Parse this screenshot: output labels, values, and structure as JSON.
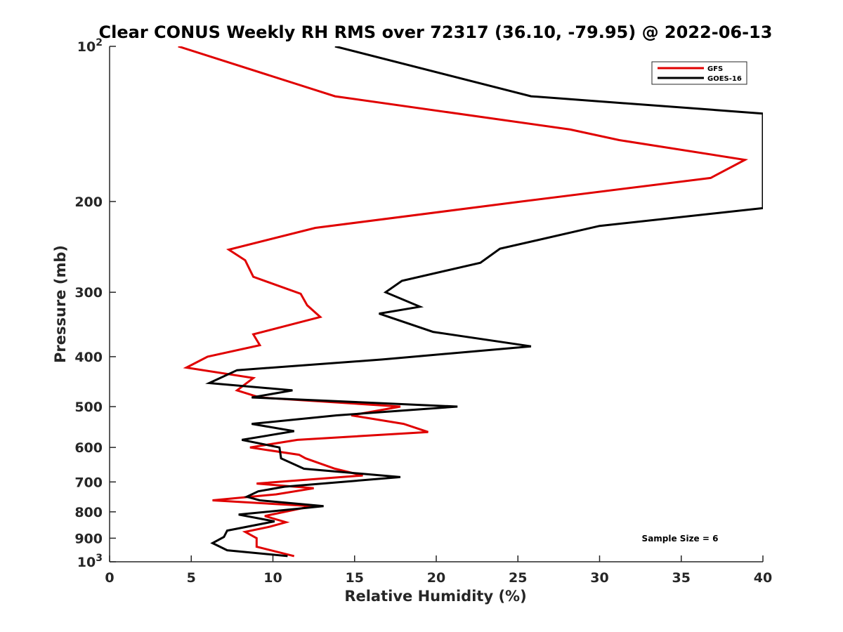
{
  "chart_data": {
    "type": "line",
    "title": "Clear CONUS Weekly RH RMS over 72317 (36.10, -79.95) @ 2022-06-13",
    "xlabel": "Relative Humidity (%)",
    "ylabel": "Pressure (mb)",
    "xlim": [
      0,
      40
    ],
    "ylim": [
      100,
      1000
    ],
    "y_scale": "log",
    "y_reversed": true,
    "x_ticks": [
      "0",
      "5",
      "10",
      "15",
      "20",
      "25",
      "30",
      "35",
      "40"
    ],
    "x_tick_values": [
      0,
      5,
      10,
      15,
      20,
      25,
      30,
      35,
      40
    ],
    "y_ticks": [
      {
        "value": 100,
        "label": "10",
        "sup": "2"
      },
      {
        "value": 200,
        "label": "200",
        "sup": ""
      },
      {
        "value": 300,
        "label": "300",
        "sup": ""
      },
      {
        "value": 400,
        "label": "400",
        "sup": ""
      },
      {
        "value": 500,
        "label": "500",
        "sup": ""
      },
      {
        "value": 600,
        "label": "600",
        "sup": ""
      },
      {
        "value": 700,
        "label": "700",
        "sup": ""
      },
      {
        "value": 800,
        "label": "800",
        "sup": ""
      },
      {
        "value": 900,
        "label": "900",
        "sup": ""
      },
      {
        "value": 1000,
        "label": "10",
        "sup": "3"
      }
    ],
    "legend_position": "top-right",
    "annotation": "Sample Size = 6",
    "series": [
      {
        "name": "GFS",
        "color": "#e00000",
        "points": [
          [
            4.2,
            100
          ],
          [
            13.8,
            125
          ],
          [
            28.2,
            145
          ],
          [
            31.2,
            152
          ],
          [
            38.9,
            166
          ],
          [
            36.8,
            180
          ],
          [
            25.2,
            200
          ],
          [
            12.6,
            225
          ],
          [
            7.3,
            248
          ],
          [
            8.3,
            260
          ],
          [
            8.8,
            280
          ],
          [
            11.7,
            302
          ],
          [
            12.1,
            318
          ],
          [
            12.9,
            335
          ],
          [
            8.8,
            362
          ],
          [
            9.2,
            380
          ],
          [
            6.0,
            400
          ],
          [
            4.7,
            420
          ],
          [
            8.8,
            440
          ],
          [
            7.8,
            465
          ],
          [
            9.2,
            480
          ],
          [
            17.8,
            500
          ],
          [
            14.8,
            520
          ],
          [
            18.0,
            540
          ],
          [
            19.5,
            560
          ],
          [
            11.5,
            580
          ],
          [
            8.6,
            600
          ],
          [
            11.6,
            620
          ],
          [
            12.0,
            630
          ],
          [
            13.8,
            660
          ],
          [
            15.5,
            680
          ],
          [
            9.0,
            705
          ],
          [
            12.5,
            720
          ],
          [
            10.2,
            740
          ],
          [
            6.3,
            760
          ],
          [
            12.4,
            780
          ],
          [
            9.5,
            815
          ],
          [
            10.8,
            838
          ],
          [
            9.8,
            855
          ],
          [
            8.3,
            875
          ],
          [
            9.0,
            900
          ],
          [
            9.0,
            935
          ],
          [
            11.3,
            975
          ]
        ]
      },
      {
        "name": "GOES-16",
        "color": "#000000",
        "points": [
          [
            13.8,
            100
          ],
          [
            25.8,
            125
          ],
          [
            40.0,
            135
          ],
          [
            40.0,
            206
          ],
          [
            30.0,
            223
          ],
          [
            23.9,
            247
          ],
          [
            22.7,
            263
          ],
          [
            17.9,
            285
          ],
          [
            16.9,
            300
          ],
          [
            19.0,
            320
          ],
          [
            16.5,
            330
          ],
          [
            19.8,
            358
          ],
          [
            25.8,
            382
          ],
          [
            16.7,
            405
          ],
          [
            7.8,
            425
          ],
          [
            6.1,
            450
          ],
          [
            11.2,
            465
          ],
          [
            8.7,
            480
          ],
          [
            21.3,
            500
          ],
          [
            13.9,
            520
          ],
          [
            8.7,
            540
          ],
          [
            11.3,
            558
          ],
          [
            8.1,
            580
          ],
          [
            10.4,
            600
          ],
          [
            10.5,
            630
          ],
          [
            11.9,
            660
          ],
          [
            17.8,
            685
          ],
          [
            10.7,
            715
          ],
          [
            9.1,
            730
          ],
          [
            8.4,
            748
          ],
          [
            9.2,
            760
          ],
          [
            13.1,
            780
          ],
          [
            7.9,
            810
          ],
          [
            10.1,
            835
          ],
          [
            7.2,
            870
          ],
          [
            7.0,
            895
          ],
          [
            6.3,
            920
          ],
          [
            7.2,
            950
          ],
          [
            10.9,
            975
          ]
        ]
      }
    ]
  }
}
